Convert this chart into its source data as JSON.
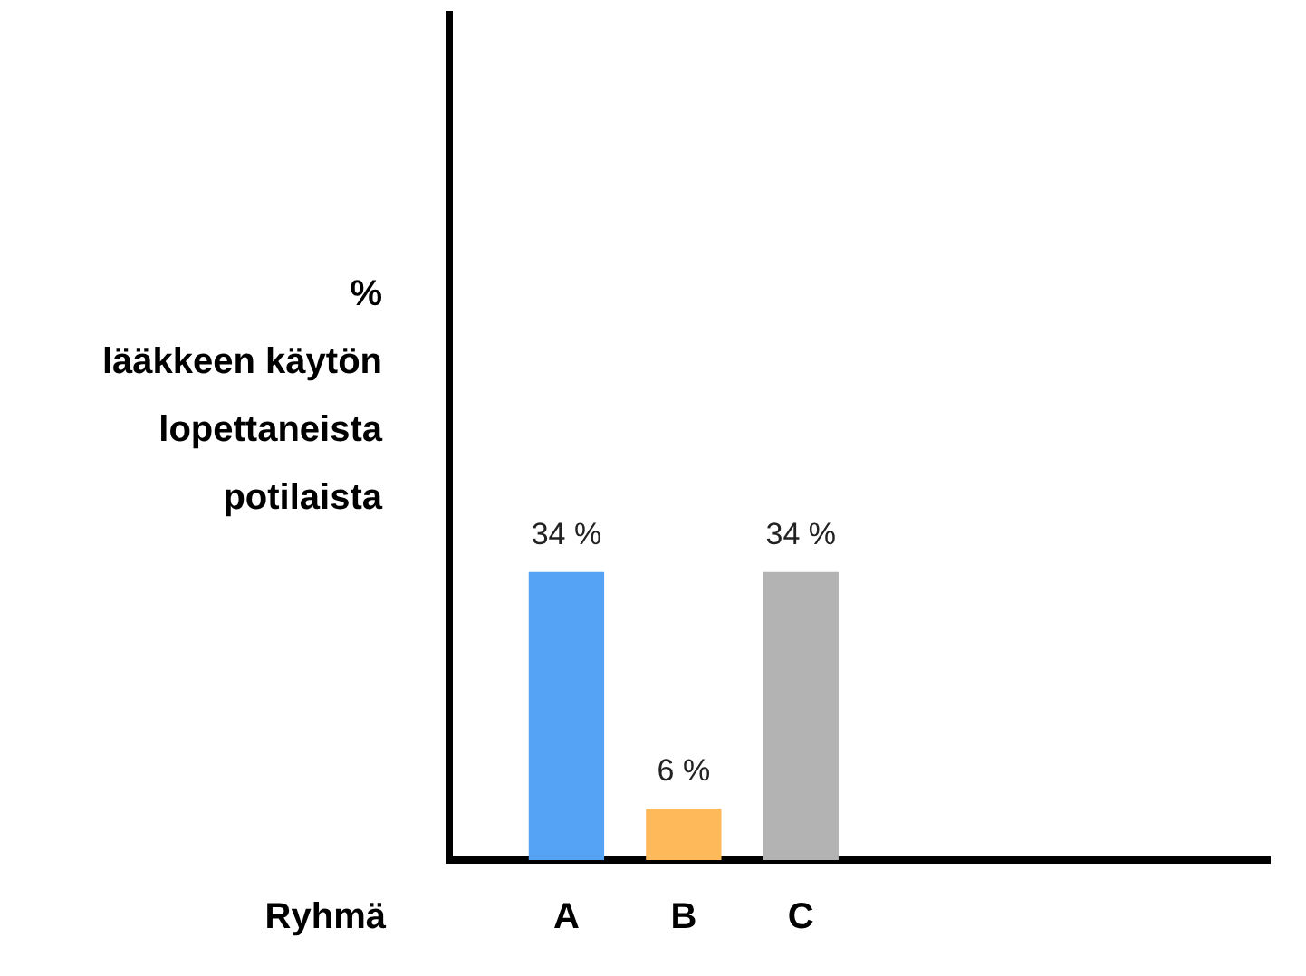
{
  "chart_data": {
    "type": "bar",
    "xlabel": "Ryhmä",
    "ylabel": "%\nlääkkeen käytön\nlopettaneista\npotilaista",
    "categories": [
      null,
      "A",
      "B",
      "C",
      null,
      null,
      null,
      null
    ],
    "values": [
      null,
      34,
      6,
      34,
      null,
      null,
      null,
      null
    ],
    "colors": [
      "#55a3f5",
      "#55a3f5",
      "#fdb95a",
      "#b3b3b3",
      "#b3b3b3",
      "#b3b3b3",
      "#b3b3b3",
      "#b3b3b3"
    ],
    "value_labels": [
      null,
      "34 %",
      "6 %",
      "34 %",
      null,
      null,
      null,
      null
    ],
    "ylim": [
      0,
      100
    ],
    "grid": false,
    "legend": false,
    "tick_labels": "x"
  }
}
